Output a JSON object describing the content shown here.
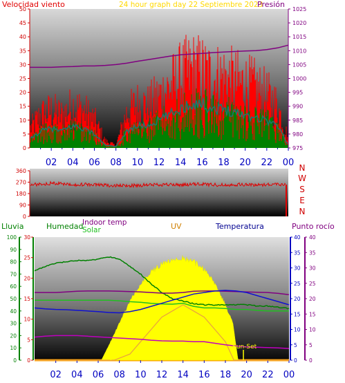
{
  "colors": {
    "wind": "#e00000",
    "gust": "#ff0000",
    "avgwind": "#1a7a70",
    "green": "#008000",
    "pressure": "#800080",
    "title": "#ffd800",
    "uvlabel": "#d08000",
    "temp": "#000090",
    "dew": "#800080",
    "solarfill": "#ffff00",
    "hourtick": "#0000c0",
    "axis": "#d00000"
  },
  "chart_data": [
    {
      "type": "line",
      "title": "24 hour graph day   22 Septiembre 2023",
      "ylabel": "Velocidad viento",
      "ylabel2": "Presión",
      "yticks": [
        0,
        5,
        10,
        15,
        20,
        25,
        30,
        35,
        40,
        45,
        50
      ],
      "ylim": [
        0,
        50
      ],
      "y2ticks": [
        975,
        980,
        985,
        990,
        995,
        1000,
        1005,
        1010,
        1015,
        1020,
        1025
      ],
      "y2lim": [
        975,
        1025
      ],
      "xticks": [
        "02",
        "04",
        "06",
        "08",
        "10",
        "12",
        "14",
        "16",
        "18",
        "20",
        "22",
        "00"
      ],
      "series": [
        {
          "name": "",
          "values": [
            [
              0,
              8
            ],
            [
              1,
              14
            ],
            [
              2,
              16
            ],
            [
              3,
              14
            ],
            [
              4,
              18
            ],
            [
              5,
              16
            ],
            [
              6,
              12
            ],
            [
              7,
              3
            ],
            [
              8,
              1
            ],
            [
              9,
              15
            ],
            [
              10,
              19
            ],
            [
              11,
              18
            ],
            [
              12,
              22
            ],
            [
              13,
              26
            ],
            [
              14,
              30
            ],
            [
              15,
              33
            ],
            [
              16,
              32
            ],
            [
              17,
              30
            ],
            [
              18,
              30
            ],
            [
              19,
              28
            ],
            [
              20,
              27
            ],
            [
              21,
              25
            ],
            [
              22,
              22
            ],
            [
              23,
              18
            ],
            [
              24,
              4
            ]
          ]
        },
        {
          "name": "",
          "values": [
            [
              0,
              3
            ],
            [
              1,
              6
            ],
            [
              2,
              7
            ],
            [
              3,
              6
            ],
            [
              4,
              8
            ],
            [
              5,
              7
            ],
            [
              6,
              5
            ],
            [
              7,
              1
            ],
            [
              8,
              0.5
            ],
            [
              9,
              6
            ],
            [
              10,
              8
            ],
            [
              11,
              8
            ],
            [
              12,
              10
            ],
            [
              13,
              12
            ],
            [
              14,
              14
            ],
            [
              15,
              16
            ],
            [
              16,
              16
            ],
            [
              17,
              14
            ],
            [
              18,
              14
            ],
            [
              19,
              13
            ],
            [
              20,
              12
            ],
            [
              21,
              11
            ],
            [
              22,
              10
            ],
            [
              23,
              8
            ],
            [
              24,
              1
            ]
          ]
        },
        {
          "name": "",
          "values": [
            [
              0,
              1004
            ],
            [
              1,
              1004
            ],
            [
              2,
              1004
            ],
            [
              3,
              1004.2
            ],
            [
              4,
              1004.3
            ],
            [
              5,
              1004.5
            ],
            [
              6,
              1004.5
            ],
            [
              7,
              1004.7
            ],
            [
              8,
              1005
            ],
            [
              9,
              1005.5
            ],
            [
              10,
              1006.2
            ],
            [
              11,
              1006.8
            ],
            [
              12,
              1007.4
            ],
            [
              13,
              1008
            ],
            [
              14,
              1008.5
            ],
            [
              15,
              1008.8
            ],
            [
              16,
              1009
            ],
            [
              17,
              1009.3
            ],
            [
              18,
              1009.5
            ],
            [
              19,
              1009.7
            ],
            [
              20,
              1009.9
            ],
            [
              21,
              1010
            ],
            [
              22,
              1010.4
            ],
            [
              23,
              1011
            ],
            [
              24,
              1012
            ]
          ]
        }
      ]
    },
    {
      "type": "line",
      "ylabel": "",
      "yticks": [
        0,
        90,
        180,
        270,
        360
      ],
      "ylim": [
        0,
        360
      ],
      "direction_labels": [
        "N",
        "W",
        "S",
        "E",
        "N"
      ],
      "series": [
        {
          "name": "",
          "values": [
            [
              0,
              250
            ],
            [
              1,
              255
            ],
            [
              2,
              262
            ],
            [
              3,
              255
            ],
            [
              4,
              250
            ],
            [
              5,
              252
            ],
            [
              6,
              250
            ],
            [
              7,
              245
            ],
            [
              8,
              240
            ],
            [
              9,
              242
            ],
            [
              10,
              245
            ],
            [
              11,
              248
            ],
            [
              12,
              252
            ],
            [
              13,
              250
            ],
            [
              14,
              248
            ],
            [
              15,
              252
            ],
            [
              16,
              255
            ],
            [
              17,
              250
            ],
            [
              18,
              248
            ],
            [
              19,
              252
            ],
            [
              20,
              250
            ],
            [
              21,
              248
            ],
            [
              22,
              252
            ],
            [
              23,
              255
            ],
            [
              24,
              250
            ]
          ]
        }
      ]
    },
    {
      "type": "area",
      "labels_top": [
        "Lluvia",
        "Humedad",
        "Indoor temp",
        "Solar",
        "UV",
        "Temperatura",
        "Punto rocío"
      ],
      "left_yticks_rain": [
        0,
        10,
        20,
        30,
        40,
        50,
        60,
        70,
        80,
        90,
        100
      ],
      "left_yticks_hum": [
        0,
        5,
        10,
        15,
        20,
        25,
        30
      ],
      "right_yticks": [
        0,
        5,
        10,
        15,
        20,
        25,
        30,
        35,
        40
      ],
      "xticks": [
        "02",
        "04",
        "06",
        "08",
        "10",
        "12",
        "14",
        "16",
        "18",
        "20",
        "22",
        "00"
      ],
      "annotation": "Sun-Set",
      "series": [
        {
          "name": "",
          "values": [
            [
              0,
              73
            ],
            [
              1,
              76
            ],
            [
              2,
              79
            ],
            [
              3,
              80
            ],
            [
              4,
              81
            ],
            [
              5,
              81
            ],
            [
              6,
              82
            ],
            [
              7,
              84
            ],
            [
              8,
              82
            ],
            [
              9,
              76
            ],
            [
              10,
              70
            ],
            [
              11,
              62
            ],
            [
              12,
              55
            ],
            [
              13,
              50
            ],
            [
              14,
              48
            ],
            [
              15,
              46
            ],
            [
              16,
              45
            ],
            [
              17,
              45
            ],
            [
              18,
              45
            ],
            [
              19,
              45
            ],
            [
              20,
              45
            ],
            [
              21,
              44
            ],
            [
              22,
              44
            ],
            [
              23,
              43
            ],
            [
              24,
              42
            ]
          ]
        },
        {
          "name": "",
          "values": [
            [
              0,
              22
            ],
            [
              1,
              22
            ],
            [
              2,
              22
            ],
            [
              3,
              22.2
            ],
            [
              4,
              22.4
            ],
            [
              5,
              22.5
            ],
            [
              6,
              22.5
            ],
            [
              7,
              22.5
            ],
            [
              8,
              22.4
            ],
            [
              9,
              22.3
            ],
            [
              10,
              22.2
            ],
            [
              11,
              22
            ],
            [
              12,
              21.8
            ],
            [
              13,
              21.8
            ],
            [
              14,
              22
            ],
            [
              15,
              22.4
            ],
            [
              16,
              22.5
            ],
            [
              17,
              22.5
            ],
            [
              18,
              22.4
            ],
            [
              19,
              22.3
            ],
            [
              20,
              22.2
            ],
            [
              21,
              22.1
            ],
            [
              22,
              22
            ],
            [
              23,
              21.7
            ],
            [
              24,
              21.3
            ]
          ]
        },
        {
          "name": "",
          "values": [
            [
              0,
              19.5
            ],
            [
              1,
              19.5
            ],
            [
              2,
              19.5
            ],
            [
              3,
              19.5
            ],
            [
              4,
              19.5
            ],
            [
              5,
              19.5
            ],
            [
              6,
              19.5
            ],
            [
              7,
              19.5
            ],
            [
              8,
              19.3
            ],
            [
              9,
              19
            ],
            [
              10,
              18.8
            ],
            [
              11,
              18.5
            ],
            [
              12,
              18.3
            ],
            [
              13,
              18.2
            ],
            [
              14,
              18.5
            ],
            [
              15,
              17.5
            ],
            [
              16,
              17
            ],
            [
              17,
              17
            ],
            [
              18,
              16.8
            ],
            [
              19,
              16.5
            ],
            [
              20,
              16.5
            ],
            [
              21,
              16.2
            ],
            [
              22,
              16
            ],
            [
              23,
              16
            ],
            [
              24,
              16
            ]
          ]
        },
        {
          "name": "",
          "values": [
            [
              0,
              0
            ],
            [
              6.3,
              0
            ],
            [
              7,
              120
            ],
            [
              8,
              300
            ],
            [
              9,
              480
            ],
            [
              10,
              620
            ],
            [
              11,
              720
            ],
            [
              12,
              780
            ],
            [
              13,
              820
            ],
            [
              14,
              830
            ],
            [
              15,
              800
            ],
            [
              16,
              740
            ],
            [
              17,
              620
            ],
            [
              18,
              450
            ],
            [
              18.7,
              300
            ],
            [
              19.2,
              0
            ],
            [
              24,
              0
            ]
          ]
        },
        {
          "name": "",
          "values": [
            [
              0,
              0
            ],
            [
              7.5,
              0
            ],
            [
              9,
              0.5
            ],
            [
              10,
              1.5
            ],
            [
              11,
              2.5
            ],
            [
              12,
              3.5
            ],
            [
              13,
              4
            ],
            [
              14,
              4.5
            ],
            [
              15,
              4
            ],
            [
              16,
              3.5
            ],
            [
              17,
              2.5
            ],
            [
              18,
              1.5
            ],
            [
              18.8,
              0
            ],
            [
              24,
              0
            ]
          ]
        },
        {
          "name": "",
          "values": [
            [
              0,
              17
            ],
            [
              1,
              16.7
            ],
            [
              2,
              16.5
            ],
            [
              3,
              16.4
            ],
            [
              4,
              16.2
            ],
            [
              5,
              16
            ],
            [
              6,
              15.8
            ],
            [
              7,
              15.5
            ],
            [
              8,
              15.4
            ],
            [
              9,
              15.8
            ],
            [
              10,
              16.5
            ],
            [
              11,
              17.5
            ],
            [
              12,
              18.5
            ],
            [
              13,
              19.5
            ],
            [
              14,
              20.5
            ],
            [
              15,
              21.5
            ],
            [
              16,
              22
            ],
            [
              17,
              22.5
            ],
            [
              18,
              22.7
            ],
            [
              19,
              22.5
            ],
            [
              20,
              22
            ],
            [
              21,
              21
            ],
            [
              22,
              20
            ],
            [
              23,
              19
            ],
            [
              24,
              18
            ]
          ]
        },
        {
          "name": "",
          "values": [
            [
              0,
              7.5
            ],
            [
              1,
              7.8
            ],
            [
              2,
              8
            ],
            [
              3,
              8
            ],
            [
              4,
              8
            ],
            [
              5,
              7.8
            ],
            [
              6,
              7.6
            ],
            [
              7,
              7.4
            ],
            [
              8,
              7.2
            ],
            [
              9,
              7
            ],
            [
              10,
              6.8
            ],
            [
              11,
              6.5
            ],
            [
              12,
              6.3
            ],
            [
              13,
              6.2
            ],
            [
              14,
              6.2
            ],
            [
              15,
              6
            ],
            [
              16,
              6
            ],
            [
              17,
              5.5
            ],
            [
              18,
              5
            ],
            [
              19,
              4.6
            ],
            [
              20,
              4.3
            ],
            [
              21,
              4.2
            ],
            [
              22,
              4.1
            ],
            [
              23,
              4
            ],
            [
              24,
              3.8
            ]
          ]
        }
      ]
    }
  ]
}
